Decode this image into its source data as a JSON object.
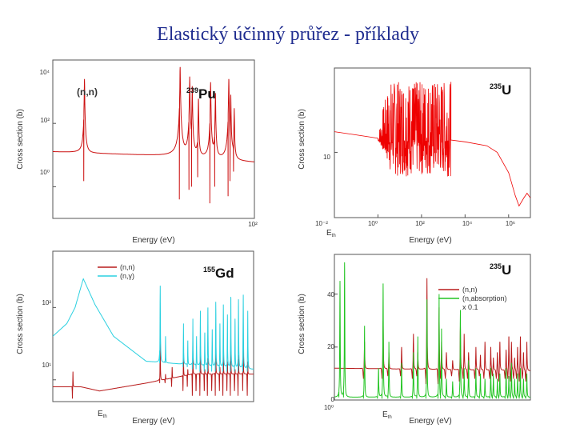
{
  "slide": {
    "title": "Elastický účinný průřez - příklady"
  },
  "chart_data": [
    {
      "id": "pu239",
      "type": "line",
      "isotope_mass": "239",
      "isotope_symbol": "Pu",
      "reaction_label": "(n,n)",
      "xlabel": "Energy (eV)",
      "ylabel": "Cross section (b)",
      "xlim": [
        0.1,
        100
      ],
      "ylim": [
        0.1,
        10000
      ],
      "xscale": "log",
      "yscale": "log",
      "grid": false,
      "x_ticklabels": [
        "10²"
      ],
      "y_ticklabels": [
        "10⁴",
        "10²",
        "10⁰"
      ],
      "series": [
        {
          "color": "#cc1111",
          "kind": "resonance",
          "baseline_start": 12,
          "baseline_end": 6,
          "resonances": [
            {
              "x": 0.296,
              "peak": 2500,
              "dip": 1.5
            },
            {
              "x": 7.85,
              "peak": 6000,
              "dip": 0.4
            },
            {
              "x": 10.9,
              "peak": 3000,
              "dip": 0.8
            },
            {
              "x": 11.9,
              "peak": 1500,
              "dip": 1.0
            },
            {
              "x": 14.7,
              "peak": 600,
              "dip": 2.0
            },
            {
              "x": 22.3,
              "peak": 2000,
              "dip": 0.3
            },
            {
              "x": 26.3,
              "peak": 900,
              "dip": 1.0
            },
            {
              "x": 41.6,
              "peak": 2500,
              "dip": 0.5
            },
            {
              "x": 44.5,
              "peak": 800,
              "dip": 1.5
            },
            {
              "x": 50.1,
              "peak": 300,
              "dip": 3.0
            }
          ]
        }
      ]
    },
    {
      "id": "u235-elastic",
      "type": "line",
      "isotope_mass": "235",
      "isotope_symbol": "U",
      "xlabel": "Energy (eV)",
      "ylabel": "Cross section (b)",
      "xlim": [
        0.01,
        10000000
      ],
      "ylim": [
        2.5,
        60
      ],
      "xscale": "log",
      "yscale": "log",
      "grid": false,
      "x_ticklabels": [
        "10⁻²",
        "10⁰",
        "10²",
        "10⁴",
        "10⁶"
      ],
      "y_ticklabels": [
        "10"
      ],
      "threshold_label": "E_th",
      "series": [
        {
          "color": "#ee0000",
          "smooth": [
            [
              0.01,
              15.5
            ],
            [
              0.1,
              14.5
            ],
            [
              0.5,
              13.8
            ],
            [
              1,
              13.5
            ]
          ],
          "resonance_region": [
            1,
            2250
          ],
          "resonance_envelope": [
            6,
            45
          ],
          "tail": [
            [
              2250,
              13
            ],
            [
              10000,
              12.5
            ],
            [
              100000,
              11.5
            ],
            [
              300000,
              10
            ],
            [
              1000000,
              6.5
            ],
            [
              2000000,
              4
            ],
            [
              3000000,
              3.2
            ],
            [
              5000000,
              3.8
            ],
            [
              7000000,
              4.2
            ],
            [
              10000000,
              3.8
            ]
          ]
        }
      ]
    },
    {
      "id": "gd155",
      "type": "line",
      "isotope_mass": "155",
      "isotope_symbol": "Gd",
      "xlabel": "Energy (eV)",
      "ylabel": "Cross section (b)",
      "xlim": [
        0.01,
        200
      ],
      "ylim": [
        5,
        600
      ],
      "xscale": "log",
      "yscale": "log",
      "grid": false,
      "y_ticklabels": [
        "10²",
        "10¹"
      ],
      "threshold_label": "E_th",
      "legend_loc": "top-left",
      "series": [
        {
          "name": "(n,n)",
          "color": "#b81c1c",
          "baseline": [
            [
              0.01,
              8
            ],
            [
              0.04,
              8
            ],
            [
              0.1,
              7
            ],
            [
              1,
              9
            ],
            [
              10,
              12
            ],
            [
              200,
              12
            ]
          ],
          "resonances": [
            {
              "x": 0.027,
              "peak": 13,
              "dip": 5.5
            },
            {
              "x": 2.0,
              "peak": 40,
              "dip": 9
            },
            {
              "x": 2.6,
              "peak": 12,
              "dip": 9
            },
            {
              "x": 3.6,
              "peak": 15,
              "dip": 8
            },
            {
              "x": 6.3,
              "peak": 22,
              "dip": 7
            },
            {
              "x": 7.8,
              "peak": 14,
              "dip": 8
            },
            {
              "x": 10.0,
              "peak": 25,
              "dip": 6
            },
            {
              "x": 12.0,
              "peak": 12,
              "dip": 7
            },
            {
              "x": 14.5,
              "peak": 30,
              "dip": 6
            },
            {
              "x": 18.0,
              "peak": 14,
              "dip": 7
            },
            {
              "x": 21.0,
              "peak": 20,
              "dip": 6
            },
            {
              "x": 26.0,
              "peak": 12,
              "dip": 7
            },
            {
              "x": 31.0,
              "peak": 35,
              "dip": 6
            },
            {
              "x": 38.0,
              "peak": 15,
              "dip": 7
            },
            {
              "x": 45.0,
              "peak": 25,
              "dip": 6
            },
            {
              "x": 55.0,
              "peak": 18,
              "dip": 7
            },
            {
              "x": 65.0,
              "peak": 28,
              "dip": 6
            },
            {
              "x": 80.0,
              "peak": 14,
              "dip": 7
            },
            {
              "x": 95.0,
              "peak": 22,
              "dip": 6
            },
            {
              "x": 120.0,
              "peak": 30,
              "dip": 7
            },
            {
              "x": 150.0,
              "peak": 18,
              "dip": 6
            }
          ]
        },
        {
          "name": "(n,γ)",
          "color": "#2bd0e0",
          "baseline": [
            [
              0.01,
              40
            ],
            [
              0.02,
              60
            ],
            [
              0.03,
              100
            ],
            [
              0.045,
              250
            ],
            [
              0.08,
              110
            ],
            [
              0.2,
              40
            ],
            [
              1,
              18
            ],
            [
              10,
              16
            ],
            [
              200,
              14
            ]
          ],
          "resonances": [
            {
              "x": 2.0,
              "peak": 200,
              "dip": 17
            },
            {
              "x": 2.6,
              "peak": 40,
              "dip": 17
            },
            {
              "x": 6.3,
              "peak": 60,
              "dip": 15
            },
            {
              "x": 7.8,
              "peak": 35,
              "dip": 15
            },
            {
              "x": 10.0,
              "peak": 70,
              "dip": 14
            },
            {
              "x": 12.0,
              "peak": 40,
              "dip": 14
            },
            {
              "x": 14.5,
              "peak": 90,
              "dip": 13
            },
            {
              "x": 18.0,
              "peak": 45,
              "dip": 13
            },
            {
              "x": 21.0,
              "peak": 100,
              "dip": 13
            },
            {
              "x": 26.0,
              "peak": 50,
              "dip": 13
            },
            {
              "x": 31.0,
              "peak": 120,
              "dip": 13
            },
            {
              "x": 38.0,
              "peak": 60,
              "dip": 13
            },
            {
              "x": 45.0,
              "peak": 110,
              "dip": 13
            },
            {
              "x": 55.0,
              "peak": 80,
              "dip": 13
            },
            {
              "x": 65.0,
              "peak": 140,
              "dip": 13
            },
            {
              "x": 80.0,
              "peak": 70,
              "dip": 13
            },
            {
              "x": 95.0,
              "peak": 130,
              "dip": 13
            },
            {
              "x": 120.0,
              "peak": 150,
              "dip": 13
            },
            {
              "x": 150.0,
              "peak": 90,
              "dip": 13
            }
          ]
        }
      ]
    },
    {
      "id": "u235-absorption",
      "type": "line",
      "isotope_mass": "235",
      "isotope_symbol": "U",
      "xlabel": "Energy (eV)",
      "ylabel": "Cross section (b)",
      "xlim": [
        1,
        100
      ],
      "ylim": [
        0,
        55
      ],
      "xscale": "log",
      "yscale": "linear",
      "grid": false,
      "x_ticklabels": [
        "10⁰"
      ],
      "y_ticklabels": [
        "0",
        "20",
        "40"
      ],
      "threshold_label": "E_th",
      "legend_loc": "top-right",
      "legend_note": "x 0.1",
      "series": [
        {
          "name": "(n,n)",
          "color": "#b81c1c",
          "baseline": 12,
          "baseline_end": 11,
          "resonances": [
            {
              "x": 2.03,
              "peak": 22,
              "dip": 8
            },
            {
              "x": 3.14,
              "peak": 30,
              "dip": 8
            },
            {
              "x": 3.6,
              "peak": 18,
              "dip": 9
            },
            {
              "x": 4.85,
              "peak": 20,
              "dip": 9
            },
            {
              "x": 6.4,
              "peak": 25,
              "dip": 8
            },
            {
              "x": 7.1,
              "peak": 18,
              "dip": 9
            },
            {
              "x": 8.8,
              "peak": 46,
              "dip": 6
            },
            {
              "x": 11.7,
              "peak": 35,
              "dip": 6
            },
            {
              "x": 12.4,
              "peak": 22,
              "dip": 8
            },
            {
              "x": 13.9,
              "peak": 18,
              "dip": 8
            },
            {
              "x": 16.1,
              "peak": 15,
              "dip": 9
            },
            {
              "x": 19.3,
              "peak": 28,
              "dip": 7
            },
            {
              "x": 21.1,
              "peak": 25,
              "dip": 8
            },
            {
              "x": 23.4,
              "peak": 18,
              "dip": 8
            },
            {
              "x": 27.8,
              "peak": 20,
              "dip": 8
            },
            {
              "x": 30.9,
              "peak": 17,
              "dip": 9
            },
            {
              "x": 34.4,
              "peak": 22,
              "dip": 8
            },
            {
              "x": 39.4,
              "peak": 20,
              "dip": 8
            },
            {
              "x": 41.9,
              "peak": 16,
              "dip": 9
            },
            {
              "x": 46.0,
              "peak": 18,
              "dip": 8
            },
            {
              "x": 48.8,
              "peak": 22,
              "dip": 7
            },
            {
              "x": 56.5,
              "peak": 19,
              "dip": 8
            },
            {
              "x": 60.3,
              "peak": 24,
              "dip": 8
            },
            {
              "x": 64.1,
              "peak": 22,
              "dip": 7
            },
            {
              "x": 69.0,
              "peak": 16,
              "dip": 8
            },
            {
              "x": 74.0,
              "peak": 20,
              "dip": 8
            },
            {
              "x": 79.0,
              "peak": 24,
              "dip": 7
            },
            {
              "x": 85.0,
              "peak": 18,
              "dip": 8
            },
            {
              "x": 92.0,
              "peak": 22,
              "dip": 7
            }
          ]
        },
        {
          "name": "(n,absorption)",
          "color": "#22c422",
          "baseline": 1,
          "baseline_end": 1,
          "resonances": [
            {
              "x": 1.14,
              "peak": 45,
              "dip": 1
            },
            {
              "x": 1.27,
              "peak": 52,
              "dip": 1
            },
            {
              "x": 2.03,
              "peak": 28,
              "dip": 0.5
            },
            {
              "x": 2.82,
              "peak": 12,
              "dip": 0.5
            },
            {
              "x": 3.14,
              "peak": 44,
              "dip": 0.5
            },
            {
              "x": 3.6,
              "peak": 22,
              "dip": 0.5
            },
            {
              "x": 4.85,
              "peak": 14,
              "dip": 0.5
            },
            {
              "x": 6.4,
              "peak": 18,
              "dip": 0.5
            },
            {
              "x": 7.1,
              "peak": 24,
              "dip": 0.5
            },
            {
              "x": 8.8,
              "peak": 38,
              "dip": 0.5
            },
            {
              "x": 11.7,
              "peak": 40,
              "dip": 0.5
            },
            {
              "x": 12.4,
              "peak": 27,
              "dip": 0.5
            },
            {
              "x": 13.9,
              "peak": 8,
              "dip": 0.5
            },
            {
              "x": 16.1,
              "peak": 7,
              "dip": 0.5
            },
            {
              "x": 19.3,
              "peak": 34,
              "dip": 0.5
            },
            {
              "x": 21.1,
              "peak": 12,
              "dip": 0.5
            },
            {
              "x": 23.4,
              "peak": 15,
              "dip": 0.5
            },
            {
              "x": 27.8,
              "peak": 12,
              "dip": 0.5
            },
            {
              "x": 30.9,
              "peak": 10,
              "dip": 0.5
            },
            {
              "x": 34.4,
              "peak": 8,
              "dip": 0.5
            },
            {
              "x": 39.4,
              "peak": 12,
              "dip": 0.5
            },
            {
              "x": 41.9,
              "peak": 10,
              "dip": 0.5
            },
            {
              "x": 46.0,
              "peak": 8,
              "dip": 0.5
            },
            {
              "x": 48.8,
              "peak": 10,
              "dip": 0.5
            },
            {
              "x": 56.5,
              "peak": 12,
              "dip": 0.5
            },
            {
              "x": 60.3,
              "peak": 9,
              "dip": 0.5
            },
            {
              "x": 64.1,
              "peak": 14,
              "dip": 0.5
            },
            {
              "x": 69.0,
              "peak": 8,
              "dip": 0.5
            },
            {
              "x": 74.0,
              "peak": 10,
              "dip": 0.5
            },
            {
              "x": 79.0,
              "peak": 12,
              "dip": 0.5
            },
            {
              "x": 85.0,
              "peak": 8,
              "dip": 0.5
            },
            {
              "x": 92.0,
              "peak": 10,
              "dip": 0.5
            }
          ]
        }
      ]
    }
  ]
}
